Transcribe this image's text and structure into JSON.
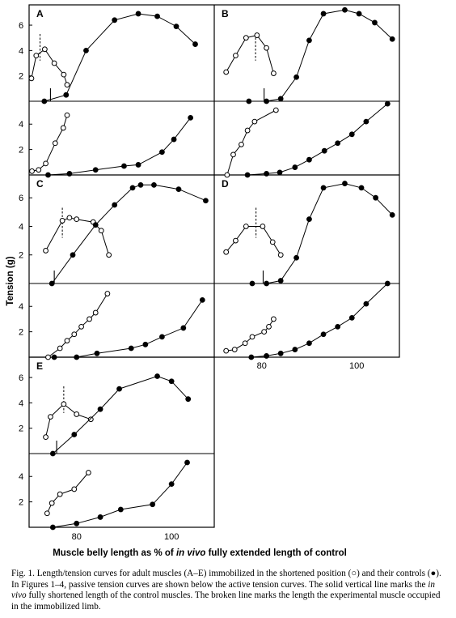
{
  "figure": {
    "y_axis_label": "Tension (g)",
    "x_axis_label_pre": "Muscle belly length as % of ",
    "x_axis_label_ital": "in vivo",
    "x_axis_label_post": " fully extended length of control",
    "caption": {
      "part1": "Fig. 1. Length/tension curves for adult muscles (A–E) immobilized in the shortened position (",
      "open_symbol": "○",
      "part2": ") and their controls (",
      "filled_symbol": "●",
      "part3": "). In Figures 1–4, passive tension curves are shown below the active tension curves. The solid vertical line marks the ",
      "ital": "in vivo",
      "part4": " fully shortened length of the control muscles. The broken line marks the length the experimental muscle occupied in the immobilized limb."
    }
  },
  "chart_data": [
    {
      "type": "line",
      "panel": "A",
      "kind": "active",
      "xlim": [
        70,
        109
      ],
      "ylim": [
        0,
        7.6
      ],
      "yticks": [
        2,
        4,
        6
      ],
      "solid_line_x": 74.5,
      "broken_line_x": 72.3,
      "series": [
        {
          "marker": "open",
          "points": [
            [
              70.5,
              1.8
            ],
            [
              71.5,
              3.6
            ],
            [
              73.3,
              4.1
            ],
            [
              75.3,
              3.0
            ],
            [
              77.3,
              2.1
            ],
            [
              78.0,
              1.3
            ]
          ]
        },
        {
          "marker": "filled",
          "points": [
            [
              73.2,
              0
            ],
            [
              77.8,
              0.5
            ],
            [
              82.0,
              4.0
            ],
            [
              88.0,
              6.4
            ],
            [
              93.0,
              6.9
            ],
            [
              97.0,
              6.7
            ],
            [
              101.0,
              5.9
            ],
            [
              105.0,
              4.5
            ]
          ]
        }
      ]
    },
    {
      "type": "line",
      "panel": "A",
      "kind": "passive",
      "xlim": [
        70,
        109
      ],
      "ylim": [
        0,
        5.8
      ],
      "yticks": [
        2,
        4
      ],
      "series": [
        {
          "marker": "open",
          "points": [
            [
              70.6,
              0.3
            ],
            [
              72.0,
              0.4
            ],
            [
              73.5,
              0.9
            ],
            [
              75.5,
              2.5
            ],
            [
              77.2,
              3.7
            ],
            [
              78.0,
              4.7
            ]
          ]
        },
        {
          "marker": "filled",
          "points": [
            [
              74.0,
              0
            ],
            [
              78.5,
              0.1
            ],
            [
              84.0,
              0.4
            ],
            [
              90.0,
              0.7
            ],
            [
              93.0,
              0.8
            ],
            [
              98.0,
              1.8
            ],
            [
              100.5,
              2.8
            ],
            [
              104.0,
              4.5
            ]
          ]
        }
      ]
    },
    {
      "type": "line",
      "panel": "B",
      "kind": "active",
      "xlim": [
        70,
        109
      ],
      "ylim": [
        0,
        7.6
      ],
      "yticks": [],
      "solid_line_x": 80.5,
      "broken_line_x": 78.7,
      "series": [
        {
          "marker": "open",
          "points": [
            [
              72.5,
              2.3
            ],
            [
              74.5,
              3.6
            ],
            [
              76.7,
              5.0
            ],
            [
              79.0,
              5.2
            ],
            [
              81.0,
              4.2
            ],
            [
              82.5,
              2.2
            ]
          ]
        },
        {
          "marker": "filled",
          "points": [
            [
              77.3,
              0
            ],
            [
              81.0,
              0
            ],
            [
              84.0,
              0.2
            ],
            [
              87.3,
              1.9
            ],
            [
              90.0,
              4.8
            ],
            [
              93.0,
              6.9
            ],
            [
              97.5,
              7.2
            ],
            [
              100.5,
              6.9
            ],
            [
              103.8,
              6.2
            ],
            [
              107.5,
              4.9
            ]
          ]
        }
      ]
    },
    {
      "type": "line",
      "panel": "B",
      "kind": "passive",
      "xlim": [
        70,
        109
      ],
      "ylim": [
        0,
        5.8
      ],
      "yticks": [],
      "series": [
        {
          "marker": "open",
          "points": [
            [
              72.7,
              0
            ],
            [
              74.0,
              1.6
            ],
            [
              75.7,
              2.4
            ],
            [
              77.0,
              3.5
            ],
            [
              78.5,
              4.2
            ],
            [
              83.0,
              5.1
            ]
          ]
        },
        {
          "marker": "filled",
          "points": [
            [
              77.0,
              0
            ],
            [
              81.0,
              0.1
            ],
            [
              83.8,
              0.2
            ],
            [
              87.0,
              0.6
            ],
            [
              90.0,
              1.2
            ],
            [
              93.2,
              1.9
            ],
            [
              96.0,
              2.5
            ],
            [
              99.0,
              3.2
            ],
            [
              102.0,
              4.2
            ],
            [
              106.5,
              5.6
            ]
          ]
        }
      ]
    },
    {
      "type": "line",
      "panel": "C",
      "kind": "active",
      "xlim": [
        70,
        109
      ],
      "ylim": [
        0,
        7.6
      ],
      "yticks": [
        2,
        4,
        6
      ],
      "solid_line_x": 75.3,
      "broken_line_x": 77.0,
      "series": [
        {
          "marker": "open",
          "points": [
            [
              73.5,
              2.3
            ],
            [
              77.0,
              4.4
            ],
            [
              78.5,
              4.6
            ],
            [
              80.0,
              4.5
            ],
            [
              83.5,
              4.3
            ],
            [
              85.2,
              3.7
            ],
            [
              86.8,
              2.0
            ]
          ]
        },
        {
          "marker": "filled",
          "points": [
            [
              74.8,
              0
            ],
            [
              79.2,
              2.0
            ],
            [
              84.0,
              4.1
            ],
            [
              88.0,
              5.5
            ],
            [
              91.8,
              6.7
            ],
            [
              93.5,
              6.9
            ],
            [
              96.3,
              6.9
            ],
            [
              101.5,
              6.6
            ],
            [
              107.2,
              5.8
            ]
          ]
        }
      ]
    },
    {
      "type": "line",
      "panel": "C",
      "kind": "passive",
      "xlim": [
        70,
        109
      ],
      "ylim": [
        0,
        5.8
      ],
      "yticks": [
        2,
        4
      ],
      "series": [
        {
          "marker": "open",
          "points": [
            [
              74.0,
              0
            ],
            [
              76.5,
              0.7
            ],
            [
              78.0,
              1.3
            ],
            [
              79.5,
              1.8
            ],
            [
              81.0,
              2.4
            ],
            [
              82.7,
              3.0
            ],
            [
              84.0,
              3.5
            ],
            [
              86.5,
              5.0
            ]
          ]
        },
        {
          "marker": "filled",
          "points": [
            [
              75.3,
              0
            ],
            [
              80.0,
              0
            ],
            [
              84.3,
              0.3
            ],
            [
              91.5,
              0.7
            ],
            [
              94.5,
              1.0
            ],
            [
              98.0,
              1.6
            ],
            [
              102.5,
              2.3
            ],
            [
              106.5,
              4.5
            ]
          ]
        }
      ]
    },
    {
      "type": "line",
      "panel": "D",
      "kind": "active",
      "xlim": [
        70,
        109
      ],
      "ylim": [
        0,
        7.6
      ],
      "yticks": [],
      "solid_line_x": 80.3,
      "broken_line_x": 78.8,
      "series": [
        {
          "marker": "open",
          "points": [
            [
              72.5,
              2.2
            ],
            [
              74.5,
              3.0
            ],
            [
              76.7,
              4.0
            ],
            [
              80.2,
              4.0
            ],
            [
              82.3,
              2.9
            ],
            [
              84.0,
              2.0
            ]
          ]
        },
        {
          "marker": "filled",
          "points": [
            [
              78.0,
              0
            ],
            [
              81.0,
              0
            ],
            [
              84.0,
              0.2
            ],
            [
              87.3,
              1.8
            ],
            [
              90.0,
              4.5
            ],
            [
              93.0,
              6.7
            ],
            [
              97.5,
              7.0
            ],
            [
              101.0,
              6.7
            ],
            [
              104.0,
              6.0
            ],
            [
              107.5,
              4.8
            ]
          ]
        }
      ]
    },
    {
      "type": "line",
      "panel": "D",
      "kind": "passive",
      "xlim": [
        70,
        109
      ],
      "ylim": [
        0,
        5.8
      ],
      "yticks": [],
      "series": [
        {
          "marker": "open",
          "points": [
            [
              72.5,
              0.5
            ],
            [
              74.3,
              0.6
            ],
            [
              76.5,
              1.1
            ],
            [
              78.0,
              1.6
            ],
            [
              80.5,
              2.0
            ],
            [
              81.5,
              2.4
            ],
            [
              82.5,
              3.0
            ]
          ]
        },
        {
          "marker": "filled",
          "points": [
            [
              77.8,
              0
            ],
            [
              81.0,
              0.1
            ],
            [
              84.0,
              0.3
            ],
            [
              87.0,
              0.6
            ],
            [
              90.0,
              1.1
            ],
            [
              93.0,
              1.8
            ],
            [
              96.0,
              2.4
            ],
            [
              99.0,
              3.1
            ],
            [
              102.0,
              4.2
            ],
            [
              106.5,
              5.8
            ]
          ]
        }
      ]
    },
    {
      "type": "line",
      "panel": "E",
      "kind": "active",
      "xlim": [
        70,
        109
      ],
      "ylim": [
        0,
        7.6
      ],
      "yticks": [
        2,
        4,
        6
      ],
      "solid_line_x": 75.8,
      "broken_line_x": 77.3,
      "series": [
        {
          "marker": "open",
          "points": [
            [
              73.5,
              1.3
            ],
            [
              74.5,
              2.9
            ],
            [
              77.3,
              3.9
            ],
            [
              80.0,
              3.1
            ],
            [
              83.0,
              2.7
            ]
          ]
        },
        {
          "marker": "filled",
          "points": [
            [
              75.0,
              0
            ],
            [
              79.5,
              1.5
            ],
            [
              85.0,
              3.5
            ],
            [
              89.0,
              5.1
            ],
            [
              97.0,
              6.1
            ],
            [
              100.0,
              5.7
            ],
            [
              103.5,
              4.3
            ]
          ]
        }
      ]
    },
    {
      "type": "line",
      "panel": "E",
      "kind": "passive",
      "xlim": [
        70,
        109
      ],
      "ylim": [
        0,
        5.8
      ],
      "yticks": [
        2,
        4
      ],
      "series": [
        {
          "marker": "open",
          "points": [
            [
              73.8,
              1.1
            ],
            [
              74.8,
              1.9
            ],
            [
              76.5,
              2.6
            ],
            [
              79.5,
              3.0
            ],
            [
              82.5,
              4.3
            ]
          ]
        },
        {
          "marker": "filled",
          "points": [
            [
              75.0,
              0
            ],
            [
              80.0,
              0.3
            ],
            [
              85.0,
              0.8
            ],
            [
              89.3,
              1.4
            ],
            [
              96.0,
              1.8
            ],
            [
              100.0,
              3.4
            ],
            [
              103.3,
              5.1
            ]
          ]
        }
      ]
    }
  ],
  "x_ticks": [
    {
      "value": 80,
      "label": "80"
    },
    {
      "value": 100,
      "label": "100"
    }
  ]
}
